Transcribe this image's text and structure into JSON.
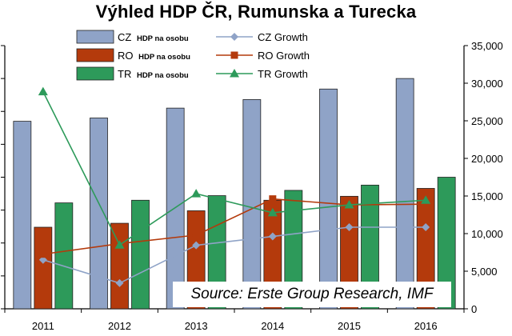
{
  "chart_data": {
    "type": "bar",
    "title": "Výhled HDP ČR, Rumunska a Turecka",
    "categories": [
      "2011",
      "2012",
      "2013",
      "2014",
      "2015",
      "2016"
    ],
    "bar_series": [
      {
        "name": "CZ",
        "name_suffix": "HDP na osobu",
        "values": [
          28500,
          29000,
          30500,
          31800,
          33400,
          35000
        ],
        "color": "#8fa3c7"
      },
      {
        "name": "RO",
        "name_suffix": "HDP na osobu",
        "values": [
          12400,
          13000,
          14900,
          16500,
          17100,
          18300
        ],
        "color": "#b43a0c"
      },
      {
        "name": "TR",
        "name_suffix": "HDP na osobu",
        "values": [
          16100,
          16500,
          17200,
          18000,
          18800,
          20000
        ],
        "color": "#2d9a5a"
      }
    ],
    "line_series": [
      {
        "name": "CZ Growth",
        "values": [
          7450,
          3900,
          9650,
          11000,
          12400,
          12400
        ],
        "color": "#8fa3c7",
        "marker": "diamond"
      },
      {
        "name": "RO Growth",
        "values": [
          8300,
          9900,
          11200,
          16700,
          15800,
          15900
        ],
        "color": "#b43a0c",
        "marker": "square"
      },
      {
        "name": "TR Growth",
        "values": [
          33000,
          9700,
          17500,
          14600,
          15800,
          16500
        ],
        "color": "#2d9a5a",
        "marker": "triangle"
      }
    ],
    "y_axis_left": {
      "ticks": [],
      "range": [
        0,
        40000
      ]
    },
    "y_axis_right": {
      "ticks": [
        "0",
        "5,000",
        "10,000",
        "15,000",
        "20,000",
        "25,000",
        "30,000",
        "35,000"
      ],
      "range": [
        0,
        35000
      ]
    },
    "grid": false,
    "legend_position": "top-center",
    "source_note": "Source: Erste Group Research, IMF"
  }
}
